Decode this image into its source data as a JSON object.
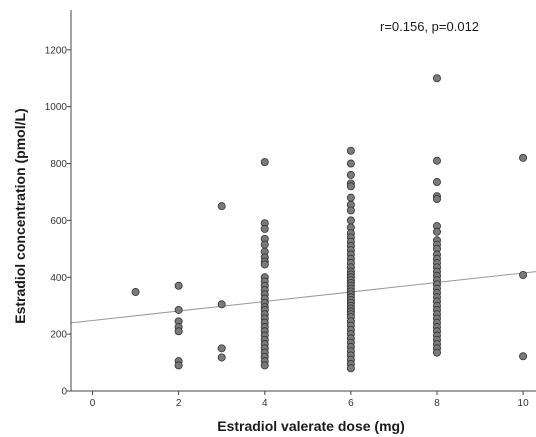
{
  "chart_data": {
    "type": "scatter",
    "title": "",
    "xlabel": "Estradiol valerate dose (mg)",
    "ylabel": "Estradiol concentration (pmol/L)",
    "annotation": "r=0.156, p=0.012",
    "xlim": [
      -0.5,
      10.3
    ],
    "ylim": [
      0,
      1340
    ],
    "x_ticks": [
      0,
      2,
      4,
      6,
      8,
      10
    ],
    "x_tick_labels": [
      "0",
      "2",
      "4",
      "6",
      "8",
      "10"
    ],
    "y_ticks": [
      0,
      200,
      400,
      600,
      800,
      1000,
      1200
    ],
    "y_tick_labels": [
      "0",
      "200",
      "400",
      "600",
      "800",
      "1000",
      "1200"
    ],
    "grid": false,
    "trendline": {
      "intercept": 248,
      "slope": 16.7
    },
    "colors": {
      "point_fill": "#7a7a7a",
      "point_stroke": "#333333",
      "trendline": "#999999",
      "axis": "#444444"
    },
    "series": [
      {
        "points": [
          [
            1,
            348
          ],
          [
            2,
            370
          ],
          [
            2,
            285
          ],
          [
            2,
            245
          ],
          [
            2,
            225
          ],
          [
            2,
            210
          ],
          [
            2,
            105
          ],
          [
            2,
            90
          ],
          [
            3,
            650
          ],
          [
            3,
            305
          ],
          [
            3,
            150
          ],
          [
            3,
            118
          ],
          [
            4,
            805
          ],
          [
            4,
            590
          ],
          [
            4,
            570
          ],
          [
            4,
            535
          ],
          [
            4,
            515
          ],
          [
            4,
            490
          ],
          [
            4,
            470
          ],
          [
            4,
            455
          ],
          [
            4,
            445
          ],
          [
            4,
            400
          ],
          [
            4,
            385
          ],
          [
            4,
            370
          ],
          [
            4,
            355
          ],
          [
            4,
            340
          ],
          [
            4,
            325
          ],
          [
            4,
            310
          ],
          [
            4,
            295
          ],
          [
            4,
            285
          ],
          [
            4,
            270
          ],
          [
            4,
            255
          ],
          [
            4,
            240
          ],
          [
            4,
            225
          ],
          [
            4,
            210
          ],
          [
            4,
            195
          ],
          [
            4,
            180
          ],
          [
            4,
            165
          ],
          [
            4,
            150
          ],
          [
            4,
            135
          ],
          [
            4,
            120
          ],
          [
            4,
            105
          ],
          [
            4,
            90
          ],
          [
            6,
            845
          ],
          [
            6,
            800
          ],
          [
            6,
            760
          ],
          [
            6,
            730
          ],
          [
            6,
            720
          ],
          [
            6,
            680
          ],
          [
            6,
            655
          ],
          [
            6,
            635
          ],
          [
            6,
            600
          ],
          [
            6,
            575
          ],
          [
            6,
            555
          ],
          [
            6,
            540
          ],
          [
            6,
            525
          ],
          [
            6,
            510
          ],
          [
            6,
            495
          ],
          [
            6,
            480
          ],
          [
            6,
            465
          ],
          [
            6,
            450
          ],
          [
            6,
            435
          ],
          [
            6,
            420
          ],
          [
            6,
            410
          ],
          [
            6,
            400
          ],
          [
            6,
            390
          ],
          [
            6,
            380
          ],
          [
            6,
            370
          ],
          [
            6,
            360
          ],
          [
            6,
            350
          ],
          [
            6,
            340
          ],
          [
            6,
            330
          ],
          [
            6,
            320
          ],
          [
            6,
            310
          ],
          [
            6,
            300
          ],
          [
            6,
            290
          ],
          [
            6,
            280
          ],
          [
            6,
            270
          ],
          [
            6,
            260
          ],
          [
            6,
            245
          ],
          [
            6,
            230
          ],
          [
            6,
            215
          ],
          [
            6,
            200
          ],
          [
            6,
            185
          ],
          [
            6,
            170
          ],
          [
            6,
            155
          ],
          [
            6,
            140
          ],
          [
            6,
            125
          ],
          [
            6,
            110
          ],
          [
            6,
            95
          ],
          [
            6,
            80
          ],
          [
            8,
            1100
          ],
          [
            8,
            810
          ],
          [
            8,
            735
          ],
          [
            8,
            685
          ],
          [
            8,
            675
          ],
          [
            8,
            580
          ],
          [
            8,
            560
          ],
          [
            8,
            530
          ],
          [
            8,
            515
          ],
          [
            8,
            500
          ],
          [
            8,
            480
          ],
          [
            8,
            465
          ],
          [
            8,
            450
          ],
          [
            8,
            435
          ],
          [
            8,
            420
          ],
          [
            8,
            405
          ],
          [
            8,
            390
          ],
          [
            8,
            375
          ],
          [
            8,
            360
          ],
          [
            8,
            345
          ],
          [
            8,
            330
          ],
          [
            8,
            315
          ],
          [
            8,
            300
          ],
          [
            8,
            285
          ],
          [
            8,
            270
          ],
          [
            8,
            255
          ],
          [
            8,
            240
          ],
          [
            8,
            225
          ],
          [
            8,
            210
          ],
          [
            8,
            195
          ],
          [
            8,
            180
          ],
          [
            8,
            165
          ],
          [
            8,
            150
          ],
          [
            8,
            135
          ],
          [
            10,
            820
          ],
          [
            10,
            408
          ],
          [
            10,
            122
          ]
        ]
      }
    ]
  }
}
